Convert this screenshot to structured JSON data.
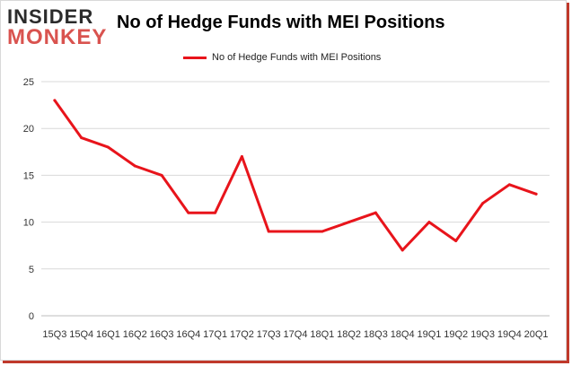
{
  "logo": {
    "line1": "INSIDER",
    "line2": "MONKEY"
  },
  "chart_data": {
    "type": "line",
    "title": "No of Hedge Funds with MEI Positions",
    "legend_position": "top-center",
    "grid": true,
    "ylim": [
      0,
      25
    ],
    "yticks": [
      0,
      5,
      10,
      15,
      20,
      25
    ],
    "categories": [
      "15Q3",
      "15Q4",
      "16Q1",
      "16Q2",
      "16Q3",
      "16Q4",
      "17Q1",
      "17Q2",
      "17Q3",
      "17Q4",
      "18Q1",
      "18Q2",
      "18Q3",
      "18Q4",
      "19Q1",
      "19Q2",
      "19Q3",
      "19Q4",
      "20Q1"
    ],
    "series": [
      {
        "name": "No of Hedge Funds with MEI Positions",
        "color": "#e8141b",
        "values": [
          23,
          19,
          18,
          16,
          15,
          11,
          11,
          17,
          9,
          9,
          9,
          10,
          11,
          7,
          10,
          8,
          12,
          14,
          13
        ]
      }
    ]
  }
}
